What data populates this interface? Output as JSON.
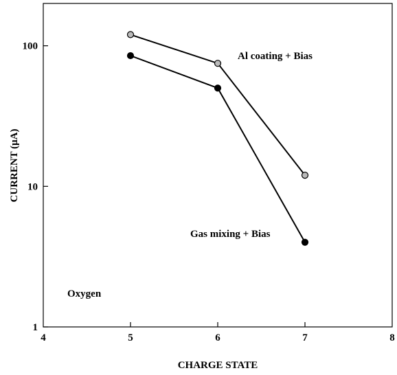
{
  "chart_data": {
    "type": "line",
    "xlabel": "CHARGE STATE",
    "ylabel": "CURRENT (μA)",
    "xlim": [
      4,
      8
    ],
    "ylim": [
      1,
      200
    ],
    "yscale": "log",
    "x_ticks": [
      4,
      5,
      6,
      7,
      8
    ],
    "x_tick_labels": [
      "4",
      "5",
      "6",
      "7",
      "8"
    ],
    "y_ticks": [
      1,
      10,
      100
    ],
    "y_tick_labels": [
      "1",
      "10",
      "100"
    ],
    "grid": false,
    "annotation": "Oxygen",
    "series": [
      {
        "name": "Al coating + Bias",
        "x": [
          5,
          6,
          7
        ],
        "values": [
          120,
          75,
          12
        ],
        "marker_color": "#bbbbbb"
      },
      {
        "name": "Gas mixing + Bias",
        "x": [
          5,
          6,
          7
        ],
        "values": [
          85,
          50,
          4
        ],
        "marker_color": "#000000"
      }
    ]
  }
}
